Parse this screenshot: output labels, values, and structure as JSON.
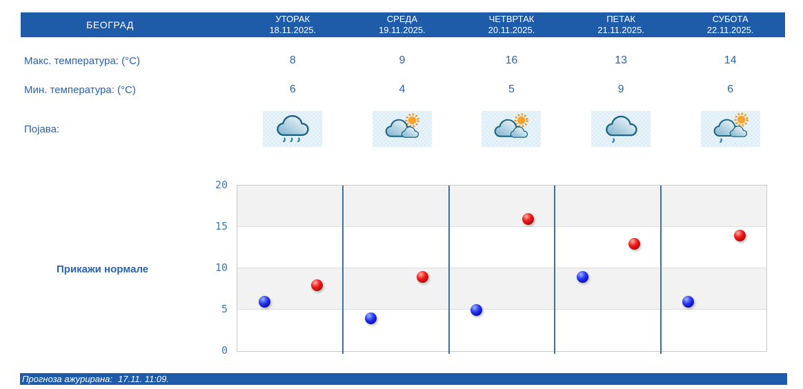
{
  "table": {
    "city": "БЕОГРАД",
    "days": [
      {
        "name": "УТОРАК",
        "date": "18.11.2025."
      },
      {
        "name": "СРЕДА",
        "date": "19.11.2025."
      },
      {
        "name": "ЧЕТВРТАК",
        "date": "20.11.2025."
      },
      {
        "name": "ПЕТАК",
        "date": "21.11.2025."
      },
      {
        "name": "СУБОТА",
        "date": "22.11.2025."
      }
    ],
    "max_label": "Макс. температура: (°C)",
    "max_values": [
      8,
      9,
      16,
      13,
      14
    ],
    "min_label": "Мин. температура: (°C)",
    "min_values": [
      6,
      4,
      5,
      9,
      6
    ],
    "phenomena_label": "Појава:",
    "icons": [
      "rain-cloud-icon",
      "sun-clouds-icon",
      "sun-clouds-icon",
      "cloud-drizzle-icon",
      "sun-clouds-drizzle-icon"
    ]
  },
  "normals_button": "Прикажи нормале",
  "chart_data": {
    "type": "scatter",
    "categories": [
      "18.11.2025.",
      "19.11.2025.",
      "20.11.2025.",
      "21.11.2025.",
      "22.11.2025."
    ],
    "series": [
      {
        "name": "Мин. температура (°C)",
        "color": "#1520c4",
        "values": [
          6,
          4,
          5,
          9,
          6
        ]
      },
      {
        "name": "Макс. температура (°C)",
        "color": "#d31414",
        "values": [
          8,
          9,
          16,
          13,
          14
        ]
      }
    ],
    "title": "",
    "xlabel": "",
    "ylabel": "",
    "ylim": [
      0,
      20
    ],
    "yticks": [
      0,
      5,
      10,
      15,
      20
    ],
    "grid": "horizontal bands with gridlines every 5, blue vertical day separators",
    "legend_position": "none"
  },
  "footer": {
    "label": "Прогноза ажурирана:",
    "value": "17.11. 11:09."
  },
  "colors": {
    "bar_blue": "#1e5caa",
    "text_blue": "#2a62b0",
    "tick_blue": "#3e7ab6",
    "vline_blue": "#3a70a9",
    "band_gray": "#f2f2f2",
    "icon_bg": "#e9f4fa"
  }
}
